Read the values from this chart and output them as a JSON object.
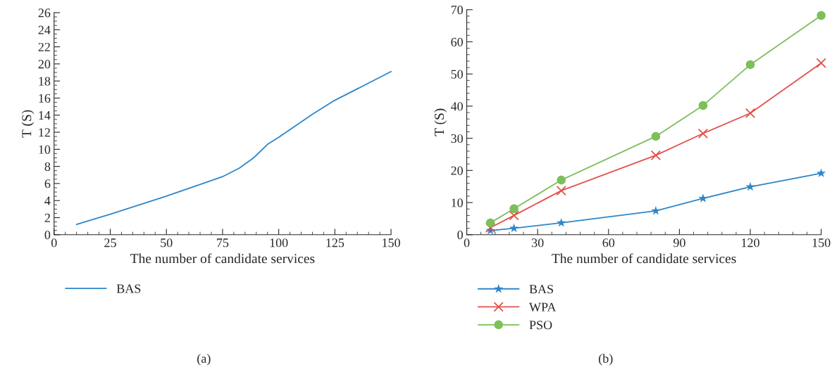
{
  "chart_data": [
    {
      "type": "line",
      "xlabel": "The number of candidate services",
      "ylabel": "T (S)",
      "xlim": [
        0,
        150
      ],
      "xticks": [
        0,
        25,
        50,
        75,
        100,
        125,
        150
      ],
      "ylim": [
        0,
        26
      ],
      "yticks": [
        0,
        2,
        4,
        6,
        8,
        10,
        12,
        14,
        16,
        18,
        20,
        22,
        24,
        26
      ],
      "grid": false,
      "legend": "bottom left",
      "marker": "none",
      "annotations": [
        "(a)"
      ],
      "series": [
        {
          "name": "BAS",
          "color": "#2e86c9",
          "x": [
            10,
            25,
            49.8,
            75,
            82.5,
            88.8,
            95.1,
            100,
            115,
            124.7,
            150
          ],
          "values": [
            1.2,
            2.4,
            4.5,
            6.8,
            7.8,
            9.0,
            10.6,
            11.4,
            14.1,
            15.7,
            19.1
          ]
        }
      ]
    },
    {
      "type": "line",
      "xlabel": "The number of candidate services",
      "ylabel": "T (S)",
      "xlim": [
        0,
        150
      ],
      "xticks": [
        0,
        30,
        60,
        90,
        120,
        150
      ],
      "ylim": [
        0,
        70
      ],
      "yticks": [
        0,
        10,
        20,
        30,
        40,
        50,
        60,
        70
      ],
      "grid": false,
      "legend": "bottom left",
      "annotations": [
        "(b)"
      ],
      "x": [
        10,
        20,
        40,
        80,
        100,
        120,
        150
      ],
      "series": [
        {
          "name": "BAS",
          "color": "#2e86c9",
          "marker": "star",
          "values": [
            1.3,
            2.0,
            3.7,
            7.4,
            11.3,
            14.9,
            19.1
          ]
        },
        {
          "name": "WPA",
          "color": "#e0524b",
          "marker": "cross",
          "values": [
            2.2,
            6.0,
            13.7,
            24.7,
            31.5,
            37.8,
            53.4
          ]
        },
        {
          "name": "PSO",
          "color": "#7dbf5a",
          "marker": "circle",
          "values": [
            3.7,
            8.1,
            17.0,
            30.6,
            40.2,
            52.9,
            68.2
          ]
        }
      ]
    }
  ]
}
